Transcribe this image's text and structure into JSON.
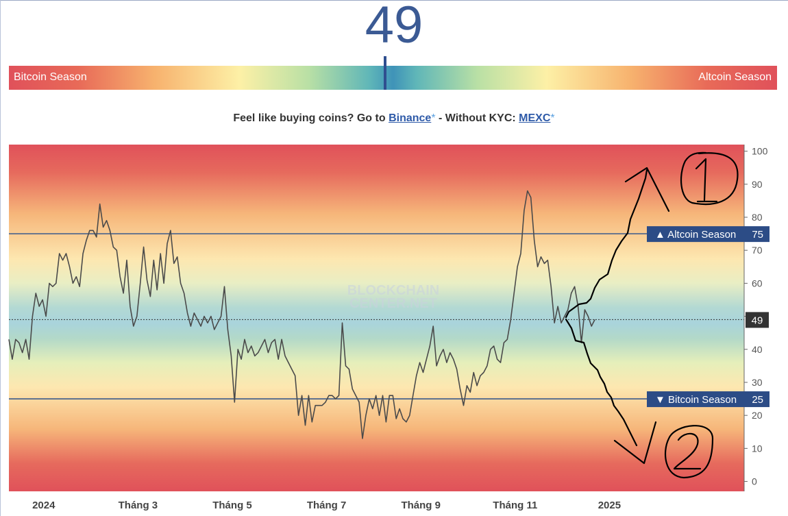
{
  "header": {
    "index_value": "49",
    "left_label": "Bitcoin Season",
    "right_label": "Altcoin Season",
    "needle_value": 49
  },
  "promo": {
    "prefix": "Feel like buying coins? Go to ",
    "binance": "Binance",
    "star": "*",
    "middle": " - Without KYC: ",
    "mexc": "MEXC"
  },
  "chart_data": {
    "type": "line",
    "watermark_line1": "BLOCKCHAIN",
    "watermark_line2": "CENTER.NET",
    "ylim": [
      -3,
      102
    ],
    "y_ticks": [
      0,
      10,
      20,
      30,
      40,
      50,
      60,
      70,
      80,
      90,
      100
    ],
    "x_ticks": [
      "2024",
      "Tháng 3",
      "Tháng 5",
      "Tháng 7",
      "Tháng 9",
      "Tháng 11",
      "2025"
    ],
    "x_tick_positions": [
      0,
      8.4,
      16.8,
      25.2,
      33.6,
      42.0,
      50.4
    ],
    "x_range": [
      -3.1,
      62.4
    ],
    "reference_lines": [
      {
        "label": "▲ Altcoin Season",
        "value": 75
      },
      {
        "label": "▼ Bitcoin Season",
        "value": 25
      }
    ],
    "current": {
      "value": 49,
      "label": "49"
    },
    "gradient_colors": [
      "#e0515a",
      "#f7b26e",
      "#fdf0a6",
      "#9cd0b0",
      "#a9d4dc"
    ],
    "series": [
      {
        "color": "#4a4a4a",
        "points": [
          [
            -3.1,
            43
          ],
          [
            -2.8,
            37
          ],
          [
            -2.5,
            43
          ],
          [
            -2.2,
            42
          ],
          [
            -1.9,
            39
          ],
          [
            -1.6,
            43
          ],
          [
            -1.3,
            37
          ],
          [
            -1.0,
            50
          ],
          [
            -0.7,
            57
          ],
          [
            -0.4,
            53
          ],
          [
            -0.1,
            55
          ],
          [
            0.2,
            50
          ],
          [
            0.5,
            60
          ],
          [
            0.8,
            59
          ],
          [
            1.1,
            60
          ],
          [
            1.4,
            69
          ],
          [
            1.7,
            67
          ],
          [
            2.0,
            69
          ],
          [
            2.3,
            65
          ],
          [
            2.6,
            60
          ],
          [
            2.9,
            62
          ],
          [
            3.2,
            59
          ],
          [
            3.5,
            69
          ],
          [
            3.8,
            73
          ],
          [
            4.1,
            76
          ],
          [
            4.4,
            76
          ],
          [
            4.7,
            74
          ],
          [
            5.0,
            84
          ],
          [
            5.3,
            77
          ],
          [
            5.6,
            79
          ],
          [
            5.9,
            76
          ],
          [
            6.2,
            71
          ],
          [
            6.5,
            70
          ],
          [
            6.8,
            62
          ],
          [
            7.1,
            57
          ],
          [
            7.4,
            67
          ],
          [
            7.7,
            53
          ],
          [
            8.0,
            47
          ],
          [
            8.3,
            50
          ],
          [
            8.6,
            60
          ],
          [
            8.9,
            71
          ],
          [
            9.2,
            61
          ],
          [
            9.5,
            56
          ],
          [
            9.8,
            67
          ],
          [
            10.1,
            58
          ],
          [
            10.4,
            69
          ],
          [
            10.7,
            60
          ],
          [
            11.0,
            72
          ],
          [
            11.3,
            76
          ],
          [
            11.6,
            66
          ],
          [
            11.9,
            68
          ],
          [
            12.2,
            60
          ],
          [
            12.5,
            57
          ],
          [
            12.8,
            51
          ],
          [
            13.1,
            47
          ],
          [
            13.4,
            51
          ],
          [
            13.7,
            49
          ],
          [
            14.0,
            47
          ],
          [
            14.3,
            50
          ],
          [
            14.6,
            48
          ],
          [
            14.9,
            50
          ],
          [
            15.2,
            46
          ],
          [
            15.5,
            48
          ],
          [
            15.8,
            50
          ],
          [
            16.1,
            59
          ],
          [
            16.4,
            46
          ],
          [
            16.7,
            38
          ],
          [
            17.0,
            24
          ],
          [
            17.3,
            40
          ],
          [
            17.6,
            37
          ],
          [
            17.9,
            43
          ],
          [
            18.2,
            39
          ],
          [
            18.5,
            41
          ],
          [
            18.8,
            38
          ],
          [
            19.1,
            39
          ],
          [
            19.4,
            41
          ],
          [
            19.7,
            43
          ],
          [
            20.0,
            39
          ],
          [
            20.3,
            42
          ],
          [
            20.6,
            43
          ],
          [
            20.9,
            37
          ],
          [
            21.2,
            43
          ],
          [
            21.5,
            38
          ],
          [
            21.8,
            36
          ],
          [
            22.1,
            34
          ],
          [
            22.4,
            32
          ],
          [
            22.7,
            20
          ],
          [
            23.0,
            26
          ],
          [
            23.3,
            17
          ],
          [
            23.6,
            26
          ],
          [
            23.9,
            18
          ],
          [
            24.2,
            23
          ],
          [
            24.5,
            23
          ],
          [
            24.8,
            23
          ],
          [
            25.1,
            24
          ],
          [
            25.4,
            26
          ],
          [
            25.7,
            26
          ],
          [
            26.0,
            25
          ],
          [
            26.3,
            26
          ],
          [
            26.6,
            48
          ],
          [
            26.9,
            35
          ],
          [
            27.2,
            34
          ],
          [
            27.5,
            28
          ],
          [
            27.8,
            26
          ],
          [
            28.1,
            24
          ],
          [
            28.4,
            13
          ],
          [
            28.7,
            20
          ],
          [
            29.0,
            25
          ],
          [
            29.3,
            22
          ],
          [
            29.6,
            26
          ],
          [
            29.9,
            20
          ],
          [
            30.2,
            26
          ],
          [
            30.5,
            18
          ],
          [
            30.8,
            26
          ],
          [
            31.1,
            26
          ],
          [
            31.4,
            19
          ],
          [
            31.7,
            22
          ],
          [
            32.0,
            19
          ],
          [
            32.3,
            18
          ],
          [
            32.6,
            20
          ],
          [
            32.9,
            26
          ],
          [
            33.2,
            32
          ],
          [
            33.5,
            36
          ],
          [
            33.8,
            33
          ],
          [
            34.1,
            37
          ],
          [
            34.4,
            41
          ],
          [
            34.7,
            47
          ],
          [
            35.0,
            35
          ],
          [
            35.3,
            38
          ],
          [
            35.6,
            40
          ],
          [
            35.9,
            36
          ],
          [
            36.2,
            39
          ],
          [
            36.5,
            37
          ],
          [
            36.8,
            34
          ],
          [
            37.1,
            28
          ],
          [
            37.4,
            23
          ],
          [
            37.7,
            29
          ],
          [
            38.0,
            27
          ],
          [
            38.3,
            33
          ],
          [
            38.6,
            29
          ],
          [
            38.9,
            32
          ],
          [
            39.2,
            33
          ],
          [
            39.5,
            35
          ],
          [
            39.8,
            40
          ],
          [
            40.1,
            41
          ],
          [
            40.4,
            37
          ],
          [
            40.7,
            36
          ],
          [
            41.0,
            42
          ],
          [
            41.3,
            43
          ],
          [
            41.6,
            49
          ],
          [
            41.9,
            57
          ],
          [
            42.2,
            65
          ],
          [
            42.5,
            69
          ],
          [
            42.8,
            82
          ],
          [
            43.1,
            88
          ],
          [
            43.4,
            86
          ],
          [
            43.7,
            73
          ],
          [
            44.0,
            65
          ],
          [
            44.3,
            68
          ],
          [
            44.6,
            66
          ],
          [
            44.9,
            67
          ],
          [
            45.2,
            59
          ],
          [
            45.5,
            48
          ],
          [
            45.8,
            53
          ],
          [
            46.1,
            48
          ],
          [
            46.4,
            50
          ],
          [
            46.7,
            52
          ],
          [
            47.0,
            57
          ],
          [
            47.3,
            59
          ],
          [
            47.6,
            53
          ],
          [
            47.9,
            42
          ],
          [
            48.2,
            52
          ],
          [
            48.5,
            50
          ],
          [
            48.8,
            47
          ],
          [
            49.1,
            49
          ]
        ]
      }
    ]
  },
  "annotations": {
    "label_up": "1",
    "label_down": "2"
  }
}
